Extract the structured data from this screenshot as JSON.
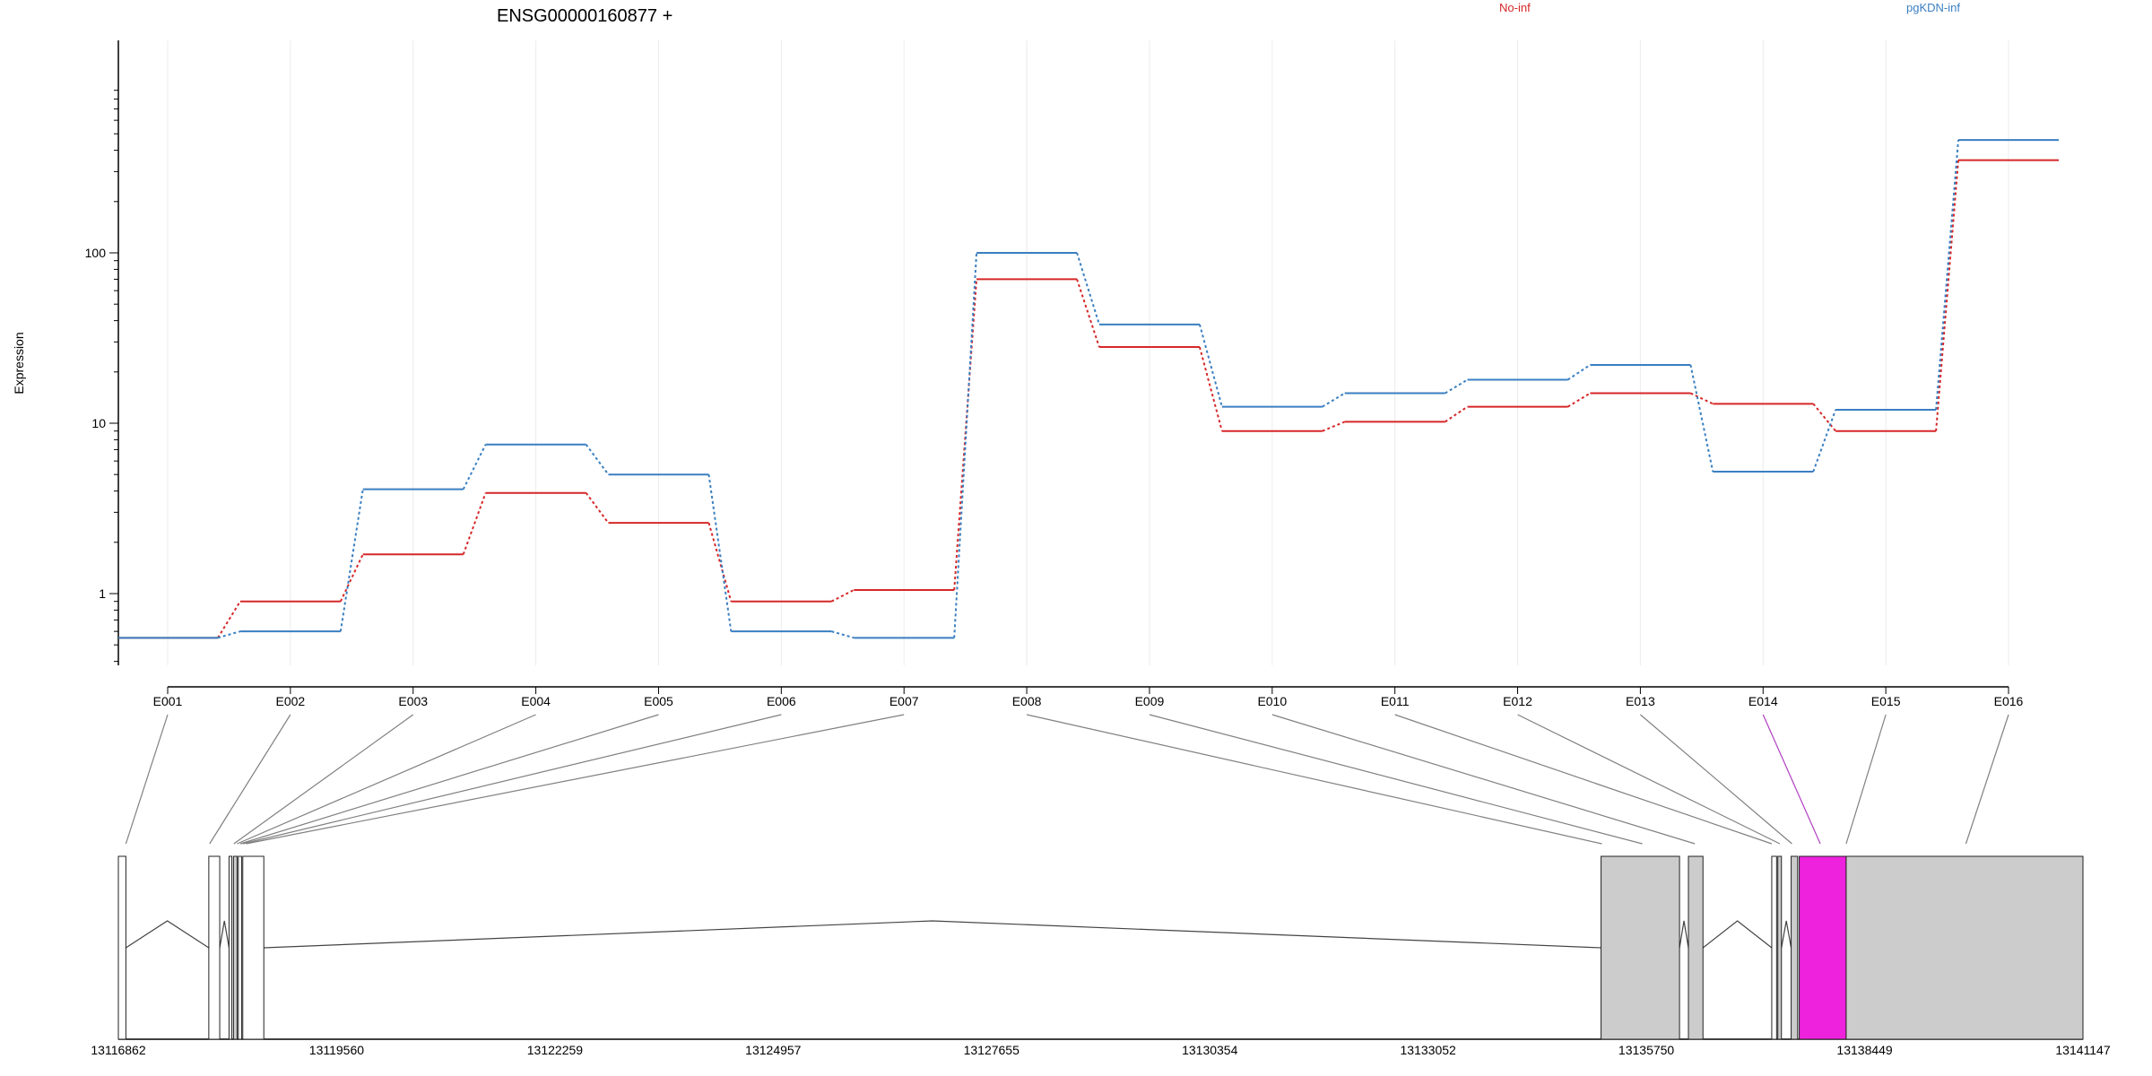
{
  "chart_data": {
    "type": "line",
    "title": "ENSG00000160877 +",
    "ylabel": "Expression",
    "yscale": "log",
    "ylim": [
      0.5,
      500
    ],
    "ytick_labels": [
      "1",
      "10",
      "100"
    ],
    "ytick_values": [
      1,
      10,
      100
    ],
    "categories": [
      "E001",
      "E002",
      "E003",
      "E004",
      "E005",
      "E006",
      "E007",
      "E008",
      "E009",
      "E010",
      "E011",
      "E012",
      "E013",
      "E014",
      "E015",
      "E016"
    ],
    "series": [
      {
        "name": "No-inf",
        "color": "#d62728",
        "values": [
          0.55,
          0.9,
          1.7,
          3.9,
          2.6,
          0.9,
          1.05,
          70,
          28,
          9,
          10.2,
          12.5,
          15,
          13,
          9,
          350
        ]
      },
      {
        "name": "pgKDN-inf",
        "color": "#3a7fc1",
        "values": [
          0.55,
          0.6,
          4.1,
          7.5,
          5,
          0.6,
          0.55,
          100,
          38,
          12.5,
          15,
          18,
          22,
          5.2,
          12,
          460
        ]
      }
    ],
    "grid": true,
    "legend": "top",
    "gene_model": {
      "coordinate_labels": [
        "13116862",
        "13119560",
        "13122259",
        "13124957",
        "13127655",
        "13130354",
        "13133052",
        "13135750",
        "13138449",
        "13141147"
      ],
      "coord_min": 13116862,
      "coord_max": 13141147,
      "exon_fill": "#cccccc",
      "highlight_fill": "#ee22dd",
      "highlighted_exon": "E014",
      "exons": [
        {
          "start": 13116862,
          "end": 13116955,
          "filled": false
        },
        {
          "start": 13117980,
          "end": 13118115,
          "filled": false
        },
        {
          "start": 13118230,
          "end": 13118265,
          "filled": false
        },
        {
          "start": 13118285,
          "end": 13118330,
          "filled": true
        },
        {
          "start": 13118345,
          "end": 13118385,
          "filled": false
        },
        {
          "start": 13118400,
          "end": 13118660,
          "filled": false
        },
        {
          "start": 13135190,
          "end": 13136160,
          "filled": true
        },
        {
          "start": 13136270,
          "end": 13136450,
          "filled": true
        },
        {
          "start": 13137300,
          "end": 13137360,
          "filled": false
        },
        {
          "start": 13137375,
          "end": 13137420,
          "filled": true
        },
        {
          "start": 13137540,
          "end": 13137620,
          "filled": true
        },
        {
          "start": 13137640,
          "end": 13138220,
          "filled": "highlight"
        },
        {
          "start": 13138220,
          "end": 13141147,
          "filled": true
        }
      ],
      "connector_targets": [
        13116955,
        13117990,
        13118290,
        13118330,
        13118370,
        13118400,
        13118440,
        13135200,
        13135700,
        13136350,
        13137300,
        13137400,
        13137550,
        13137900,
        13138220,
        13139700
      ]
    }
  }
}
